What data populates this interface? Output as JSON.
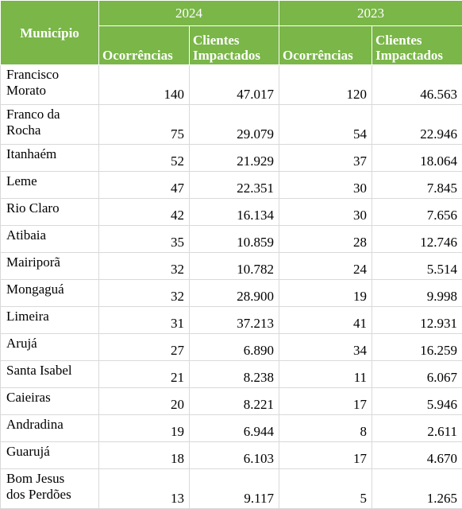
{
  "table": {
    "header": {
      "municipio": "Município",
      "years": [
        "2024",
        "2023"
      ],
      "columns": [
        "Ocorrências",
        "Clientes Impactados",
        "Ocorrências",
        "Clientes Impactados"
      ]
    },
    "rows": [
      [
        "Francisco Morato",
        "140",
        "47.017",
        "120",
        "46.563"
      ],
      [
        "Franco da Rocha",
        "75",
        "29.079",
        "54",
        "22.946"
      ],
      [
        "Itanhaém",
        "52",
        "21.929",
        "37",
        "18.064"
      ],
      [
        "Leme",
        "47",
        "22.351",
        "30",
        "7.845"
      ],
      [
        "Rio Claro",
        "42",
        "16.134",
        "30",
        "7.656"
      ],
      [
        "Atibaia",
        "35",
        "10.859",
        "28",
        "12.746"
      ],
      [
        "Mairiporã",
        "32",
        "10.782",
        "24",
        "5.514"
      ],
      [
        "Mongaguá",
        "32",
        "28.900",
        "19",
        "9.998"
      ],
      [
        "Limeira",
        "31",
        "37.213",
        "41",
        "12.931"
      ],
      [
        "Arujá",
        "27",
        "6.890",
        "34",
        "16.259"
      ],
      [
        "Santa Isabel",
        "21",
        "8.238",
        "11",
        "6.067"
      ],
      [
        "Caieiras",
        "20",
        "8.221",
        "17",
        "5.946"
      ],
      [
        "Andradina",
        "19",
        "6.944",
        "8",
        "2.611"
      ],
      [
        "Guarujá",
        "18",
        "6.103",
        "17",
        "4.670"
      ],
      [
        "Bom Jesus dos Perdões",
        "13",
        "9.117",
        "5",
        "1.265"
      ]
    ]
  }
}
